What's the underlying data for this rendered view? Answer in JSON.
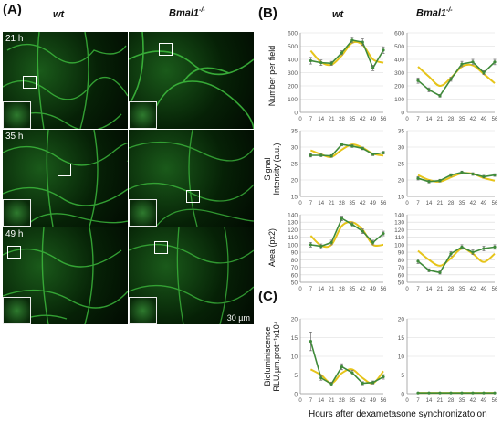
{
  "panels": {
    "a": "(A)",
    "b": "(B)",
    "c": "(C)"
  },
  "genotypes": {
    "wt": "wt",
    "mut_base": "Bmal1",
    "mut_sup": "-/-"
  },
  "micrographs": {
    "times": [
      "21 h",
      "35 h",
      "49 h"
    ],
    "scalebar": "30 µm"
  },
  "row_labels": {
    "number": "Number per field",
    "signal_1": "Signal",
    "signal_2": "Intensity (a.u.)",
    "area": "Area (px2)",
    "biolum_1": "Bioluminiscence",
    "biolum_2": "RLU.µm.prot⁻¹x10⁴"
  },
  "x_axis_label": "Hours after dexametasone synchronizatoion",
  "colors": {
    "data": "#3f8a3a",
    "fit": "#e6c41a",
    "grid": "#d9d9d9",
    "axis": "#9a9a9a"
  },
  "chart_data": [
    {
      "type": "line",
      "id": "number-wt",
      "x": [
        7,
        14,
        21,
        28,
        35,
        42,
        49,
        56
      ],
      "xticks": [
        0,
        7,
        14,
        21,
        28,
        35,
        42,
        49,
        56
      ],
      "yticks": [
        0,
        100,
        200,
        300,
        400,
        500,
        600
      ],
      "ylim": [
        0,
        600
      ],
      "series": [
        {
          "values": [
            390,
            375,
            370,
            450,
            545,
            530,
            335,
            470
          ],
          "errors": [
            25,
            20,
            15,
            15,
            20,
            25,
            20,
            25
          ]
        },
        {
          "values": [
            465,
            380,
            360,
            430,
            525,
            510,
            400,
            375
          ]
        }
      ]
    },
    {
      "type": "line",
      "id": "number-mut",
      "x": [
        7,
        14,
        21,
        28,
        35,
        42,
        49,
        56
      ],
      "xticks": [
        0,
        7,
        14,
        21,
        28,
        35,
        42,
        49,
        56
      ],
      "yticks": [
        0,
        100,
        200,
        300,
        400,
        500,
        600
      ],
      "ylim": [
        0,
        600
      ],
      "series": [
        {
          "values": [
            240,
            170,
            125,
            250,
            365,
            380,
            300,
            380
          ],
          "errors": [
            20,
            15,
            10,
            15,
            20,
            20,
            15,
            20
          ]
        },
        {
          "values": [
            345,
            270,
            200,
            260,
            345,
            355,
            290,
            220
          ]
        }
      ]
    },
    {
      "type": "line",
      "id": "signal-wt",
      "x": [
        7,
        14,
        21,
        28,
        35,
        42,
        49,
        56
      ],
      "xticks": [
        0,
        7,
        14,
        21,
        28,
        35,
        42,
        49,
        56
      ],
      "yticks": [
        15,
        20,
        25,
        30,
        35
      ],
      "ylim": [
        15,
        35
      ],
      "series": [
        {
          "values": [
            27.5,
            27.5,
            27.3,
            30.8,
            30.3,
            29.6,
            27.8,
            28.3
          ],
          "errors": [
            0.5,
            0.4,
            0.4,
            0.4,
            0.4,
            0.4,
            0.4,
            0.4
          ]
        },
        {
          "values": [
            29.0,
            27.8,
            27.0,
            29.2,
            30.8,
            29.8,
            28.0,
            27.4
          ]
        }
      ]
    },
    {
      "type": "line",
      "id": "signal-mut",
      "x": [
        7,
        14,
        21,
        28,
        35,
        42,
        49,
        56
      ],
      "xticks": [
        0,
        7,
        14,
        21,
        28,
        35,
        42,
        49,
        56
      ],
      "yticks": [
        15,
        20,
        25,
        30,
        35
      ],
      "ylim": [
        15,
        35
      ],
      "series": [
        {
          "values": [
            20.5,
            19.5,
            19.8,
            21.5,
            22.3,
            21.8,
            21.0,
            21.5
          ],
          "errors": [
            0.5,
            0.4,
            0.4,
            0.4,
            0.4,
            0.4,
            0.4,
            0.4
          ]
        },
        {
          "values": [
            21.5,
            20.0,
            19.5,
            20.8,
            22.0,
            21.9,
            20.6,
            19.8
          ]
        }
      ]
    },
    {
      "type": "line",
      "id": "area-wt",
      "x": [
        7,
        14,
        21,
        28,
        35,
        42,
        49,
        56
      ],
      "xticks": [
        0,
        7,
        14,
        21,
        28,
        35,
        42,
        49,
        56
      ],
      "yticks": [
        50,
        60,
        70,
        80,
        90,
        100,
        110,
        120,
        130,
        140
      ],
      "ylim": [
        50,
        140
      ],
      "series": [
        {
          "values": [
            100,
            98,
            103,
            135,
            127,
            118,
            103,
            115
          ],
          "errors": [
            3,
            3,
            3,
            3,
            3,
            3,
            3,
            3
          ]
        },
        {
          "values": [
            112,
            99,
            100,
            125,
            130,
            120,
            100,
            100
          ]
        }
      ]
    },
    {
      "type": "line",
      "id": "area-mut",
      "x": [
        7,
        14,
        21,
        28,
        35,
        42,
        49,
        56
      ],
      "xticks": [
        0,
        7,
        14,
        21,
        28,
        35,
        42,
        49,
        56
      ],
      "yticks": [
        50,
        60,
        70,
        80,
        90,
        100,
        110,
        120,
        130,
        140
      ],
      "ylim": [
        50,
        140
      ],
      "series": [
        {
          "values": [
            78,
            66,
            63,
            88,
            97,
            90,
            95,
            97
          ],
          "errors": [
            3,
            2,
            2,
            3,
            3,
            3,
            3,
            3
          ]
        },
        {
          "values": [
            92,
            80,
            72,
            82,
            95,
            88,
            77,
            88
          ]
        }
      ]
    },
    {
      "type": "line",
      "id": "biolum-wt",
      "x": [
        7,
        14,
        21,
        28,
        35,
        42,
        49,
        56
      ],
      "xticks": [
        0,
        7,
        14,
        21,
        28,
        35,
        42,
        49,
        56
      ],
      "yticks": [
        0,
        5,
        10,
        15,
        20
      ],
      "ylim": [
        0,
        20
      ],
      "series": [
        {
          "values": [
            14.0,
            4.2,
            2.6,
            7.2,
            5.6,
            2.8,
            3.0,
            4.5
          ],
          "errors": [
            2.5,
            0.6,
            0.5,
            0.8,
            0.6,
            0.4,
            0.4,
            0.6
          ]
        },
        {
          "values": [
            6.5,
            5.0,
            2.8,
            5.5,
            6.5,
            4.2,
            2.8,
            6.0
          ]
        }
      ]
    },
    {
      "type": "line",
      "id": "biolum-mut",
      "x": [
        7,
        14,
        21,
        28,
        35,
        42,
        49,
        56
      ],
      "xticks": [
        0,
        7,
        14,
        21,
        28,
        35,
        42,
        49,
        56
      ],
      "yticks": [
        0,
        5,
        10,
        15,
        20
      ],
      "ylim": [
        0,
        20
      ],
      "series": [
        {
          "values": [
            0.2,
            0.2,
            0.2,
            0.2,
            0.2,
            0.2,
            0.2,
            0.2
          ],
          "errors": [
            0.1,
            0.1,
            0.1,
            0.1,
            0.1,
            0.1,
            0.1,
            0.1
          ]
        },
        {
          "values": [
            0.2,
            0.2,
            0.2,
            0.2,
            0.2,
            0.2,
            0.2,
            0.2
          ]
        }
      ]
    }
  ]
}
